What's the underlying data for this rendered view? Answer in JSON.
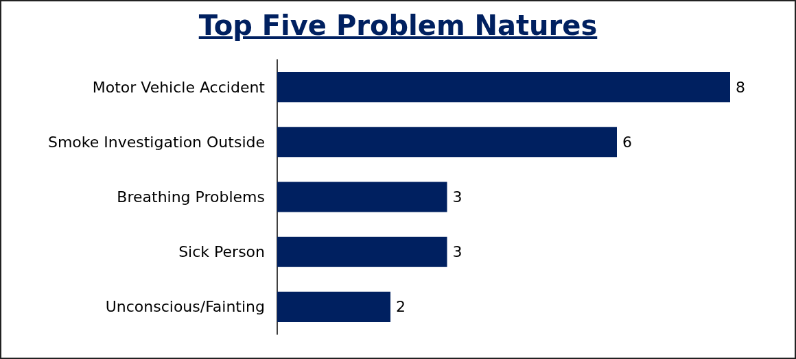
{
  "chart_data": {
    "type": "bar",
    "title": "Top Five Problem Natures",
    "orientation": "horizontal",
    "categories": [
      "Motor Vehicle Accident",
      "Smoke Investigation Outside",
      "Breathing Problems",
      "Sick Person",
      "Unconscious/Fainting"
    ],
    "values": [
      8,
      6,
      3,
      3,
      2
    ],
    "color": "#002060",
    "data_labels": true
  }
}
